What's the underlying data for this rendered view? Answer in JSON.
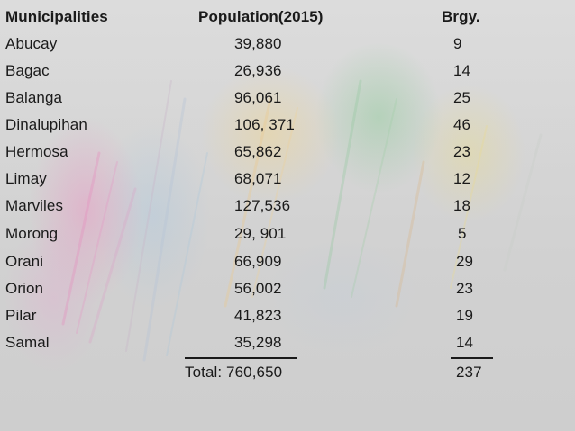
{
  "headers": {
    "municipalities": "Municipalities",
    "population": "Population(2015)",
    "barangays": "Brgy."
  },
  "rows": [
    {
      "name": "Abucay",
      "population": "39,880",
      "barangays": "9"
    },
    {
      "name": "Bagac",
      "population": "26,936",
      "barangays": "14"
    },
    {
      "name": "Balanga",
      "population": "96,061",
      "barangays": "25"
    },
    {
      "name": "Dinalupihan",
      "population": "106, 371",
      "barangays": "46"
    },
    {
      "name": "Hermosa",
      "population": "65,862",
      "barangays": "23"
    },
    {
      "name": "Limay",
      "population": "68,071",
      "barangays": "12"
    },
    {
      "name": "Marviles",
      "population": "127,536",
      "barangays": "18"
    },
    {
      "name": "Morong",
      "population": "29, 901",
      "barangays": "5"
    },
    {
      "name": "Orani",
      "population": "66,909",
      "barangays": "29"
    },
    {
      "name": "Orion",
      "population": "56,002",
      "barangays": "23"
    },
    {
      "name": "Pilar",
      "population": "41,823",
      "barangays": "19"
    },
    {
      "name": "Samal",
      "population": "35,298",
      "barangays": "14"
    }
  ],
  "totals": {
    "population": "Total: 760,650",
    "barangays": "237"
  }
}
